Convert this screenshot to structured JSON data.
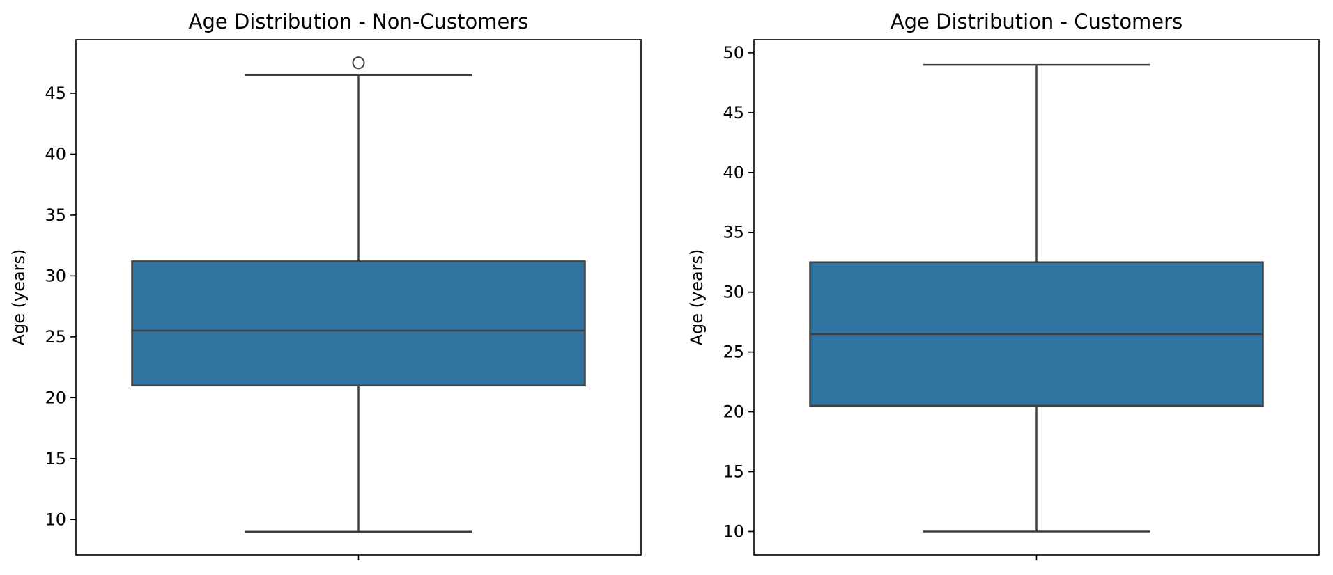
{
  "chart_data": [
    {
      "type": "box",
      "title": "Age Distribution - Non-Customers",
      "xlabel": "",
      "ylabel": "Age (years)",
      "ylim": [
        7.1,
        49.4
      ],
      "yticks": [
        10,
        15,
        20,
        25,
        30,
        35,
        40,
        45
      ],
      "box": {
        "whisker_low": 9,
        "q1": 21,
        "median": 25.5,
        "q3": 31.2,
        "whisker_high": 46.5,
        "fliers": [
          47.5
        ]
      },
      "color": "#3274a1"
    },
    {
      "type": "box",
      "title": "Age Distribution - Customers",
      "xlabel": "",
      "ylabel": "Age (years)",
      "ylim": [
        8.05,
        51.1
      ],
      "yticks": [
        10,
        15,
        20,
        25,
        30,
        35,
        40,
        45,
        50
      ],
      "box": {
        "whisker_low": 10,
        "q1": 20.5,
        "median": 26.5,
        "q3": 32.5,
        "whisker_high": 49,
        "fliers": []
      },
      "color": "#3274a1"
    }
  ]
}
